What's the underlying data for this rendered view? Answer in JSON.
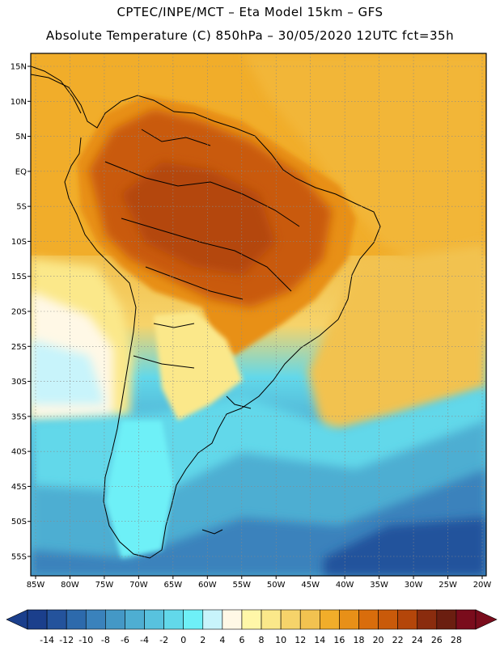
{
  "title": {
    "line1": "CPTEC/INPE/MCT –  Eta Model 15km – GFS",
    "line2": "Absolute Temperature (C) 850hPa – 30/05/2020 12UTC fct=35h"
  },
  "map": {
    "lat_ticks": [
      "15N",
      "10N",
      "5N",
      "EQ",
      "5S",
      "10S",
      "15S",
      "20S",
      "25S",
      "30S",
      "35S",
      "40S",
      "45S",
      "50S",
      "55S"
    ],
    "lon_ticks": [
      "85W",
      "80W",
      "75W",
      "70W",
      "65W",
      "60W",
      "55W",
      "50W",
      "45W",
      "40W",
      "35W",
      "30W",
      "25W",
      "20W"
    ]
  },
  "colorbar": {
    "labels": [
      "-14",
      "-12",
      "-10",
      "-8",
      "-6",
      "-4",
      "-2",
      "0",
      "2",
      "4",
      "6",
      "8",
      "10",
      "12",
      "14",
      "16",
      "18",
      "20",
      "22",
      "24",
      "26",
      "28"
    ],
    "colors": [
      "#1b3f8c",
      "#24539c",
      "#2d6aac",
      "#3a82bc",
      "#4498c6",
      "#4eaed2",
      "#58c2de",
      "#62d8ea",
      "#6ef0f7",
      "#c8f4fb",
      "#fff8e6",
      "#fff7a8",
      "#fbe88a",
      "#f6d36a",
      "#f2c250",
      "#f1ad2a",
      "#e89018",
      "#d96d0c",
      "#c95a0a",
      "#b4460a",
      "#8a2c0e",
      "#6b1e10",
      "#7a0c1c"
    ]
  }
}
